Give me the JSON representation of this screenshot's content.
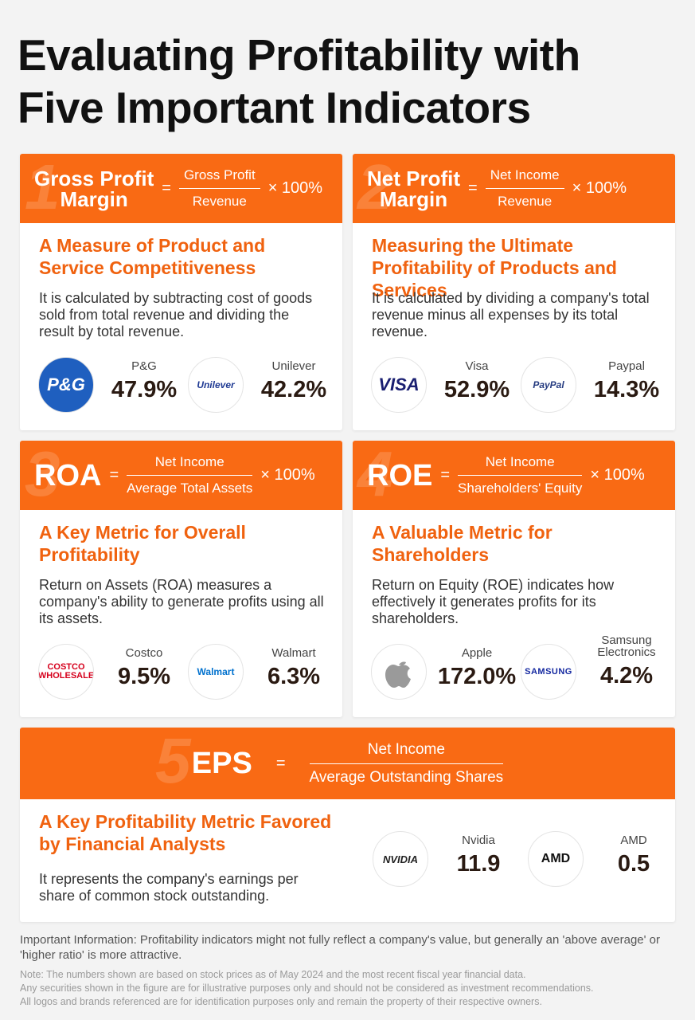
{
  "title_lines": [
    "Evaluating Profitability with",
    "Five Important Indicators"
  ],
  "cards": [
    {
      "number": "1",
      "name_lines": [
        "Gross Profit",
        "Margin"
      ],
      "equals": "=",
      "numerator": "Gross Profit",
      "denominator": "Revenue",
      "multiplier": "× 100%",
      "heading": "A Measure of Product and Service Competitiveness",
      "description": "It is calculated by subtracting cost of goods sold from total revenue and dividing the result by total revenue.",
      "companies": [
        {
          "name": "P&G",
          "value": "47.9%",
          "logo": "P&G"
        },
        {
          "name": "Unilever",
          "value": "42.2%",
          "logo": "Unilever"
        }
      ]
    },
    {
      "number": "2",
      "name_lines": [
        "Net Profit",
        "Margin"
      ],
      "equals": "=",
      "numerator": "Net Income",
      "denominator": "Revenue",
      "multiplier": "× 100%",
      "heading": "Measuring the Ultimate Profitability of Products and Services",
      "description": "It is calculated by dividing a company's total revenue minus all expenses by its total revenue.",
      "companies": [
        {
          "name": "Visa",
          "value": "52.9%",
          "logo": "VISA"
        },
        {
          "name": "Paypal",
          "value": "14.3%",
          "logo": "PayPal"
        }
      ]
    },
    {
      "number": "3",
      "name_lines": [
        "ROA"
      ],
      "equals": "=",
      "numerator": "Net Income",
      "denominator": "Average Total Assets",
      "multiplier": "× 100%",
      "heading": "A Key Metric for Overall Profitability",
      "description": "Return on Assets (ROA) measures a company's ability to generate profits using all its assets.",
      "companies": [
        {
          "name": "Costco",
          "value": "9.5%",
          "logo": "COSTCO WHOLESALE"
        },
        {
          "name": "Walmart",
          "value": "6.3%",
          "logo": "Walmart"
        }
      ]
    },
    {
      "number": "4",
      "name_lines": [
        "ROE"
      ],
      "equals": "=",
      "numerator": "Net Income",
      "denominator": "Shareholders' Equity",
      "multiplier": "× 100%",
      "heading": "A Valuable Metric for Shareholders",
      "description": "Return on Equity (ROE) indicates how effectively it generates profits for its shareholders.",
      "companies": [
        {
          "name": "Apple",
          "value": "172.0%"
        },
        {
          "name": "Samsung Electronics",
          "value": "4.2%",
          "logo": "SAMSUNG"
        }
      ]
    },
    {
      "number": "5",
      "name_lines": [
        "EPS"
      ],
      "equals": "=",
      "numerator": "Net Income",
      "denominator": "Average Outstanding Shares",
      "heading": "A Key Profitability Metric Favored by Financial Analysts",
      "description": "It represents the company's earnings per share of common stock outstanding.",
      "companies": [
        {
          "name": "Nvidia",
          "value": "11.9",
          "logo": "NVIDIA"
        },
        {
          "name": "AMD",
          "value": "0.5",
          "logo": "AMD"
        }
      ]
    }
  ],
  "important": "Important Information: Profitability indicators might not fully reflect a company's value, but generally an 'above average' or 'higher ratio' is more attractive.",
  "notes": [
    "Note: The numbers shown are based on stock prices as of May 2024 and the most recent fiscal year financial data.",
    "Any securities shown in the figure are for illustrative purposes only and should not be considered as investment recommendations.",
    "All logos and brands referenced are for identification purposes only and remain the property of their respective owners."
  ]
}
